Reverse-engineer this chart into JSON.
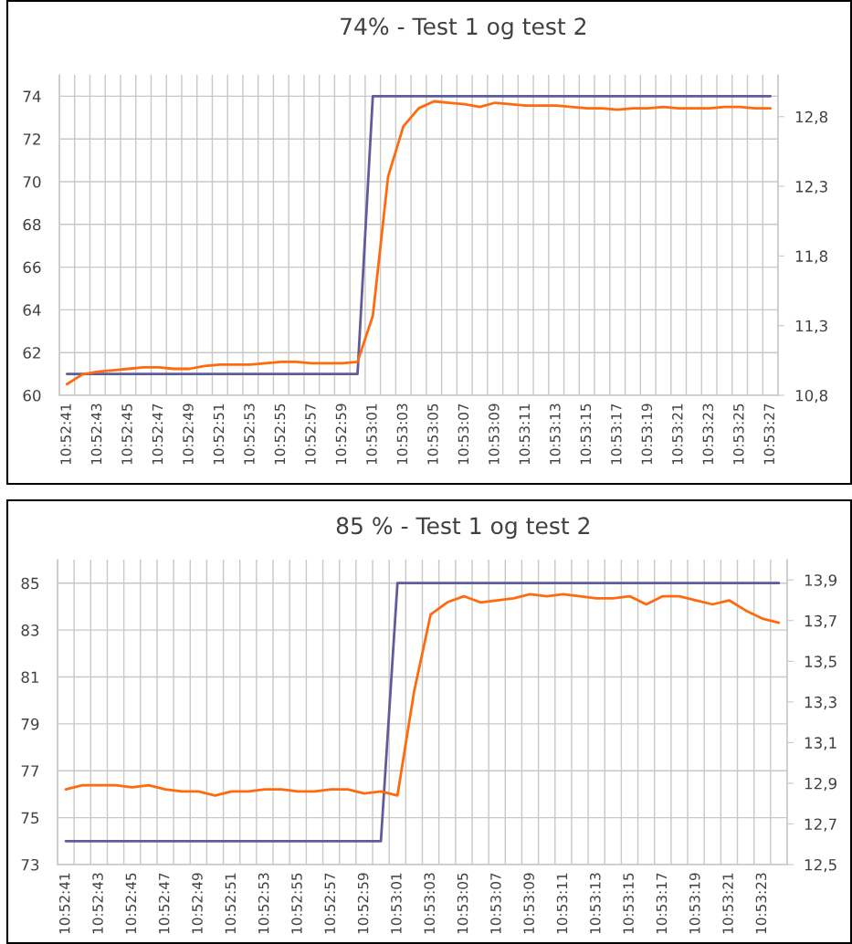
{
  "chart_data": [
    {
      "type": "line",
      "title": "74% - Test 1 og test 2",
      "categories": [
        "10:52:41",
        null,
        "10:52:43",
        null,
        "10:52:45",
        null,
        "10:52:47",
        null,
        "10:52:49",
        null,
        "10:52:51",
        null,
        "10:52:53",
        null,
        "10:52:55",
        null,
        "10:52:57",
        null,
        "10:52:59",
        null,
        "10:53:01",
        null,
        "10:53:03",
        null,
        "10:53:05",
        null,
        "10:53:07",
        null,
        "10:53:09",
        null,
        "10:53:11",
        null,
        "10:53:13",
        null,
        "10:53:15",
        null,
        "10:53:17",
        null,
        "10:53:19",
        null,
        "10:53:21",
        null,
        "10:53:23",
        null,
        "10:53:25",
        null,
        "10:53:27"
      ],
      "series": [
        {
          "color": "#5f5c9e",
          "values": [
            61,
            61,
            61,
            61,
            61,
            61,
            61,
            61,
            61,
            61,
            61,
            61,
            61,
            61,
            61,
            61,
            61,
            61,
            61,
            61,
            74,
            74,
            74,
            74,
            74,
            74,
            74,
            74,
            74,
            74,
            74,
            74,
            74,
            74,
            74,
            74,
            74,
            74,
            74,
            74,
            74,
            74,
            74,
            74,
            74,
            74,
            74
          ]
        },
        {
          "color": "#ff6a0f",
          "axis": "y2",
          "values": [
            10.88,
            10.95,
            10.97,
            10.98,
            10.99,
            11.0,
            11.0,
            10.99,
            10.99,
            11.01,
            11.02,
            11.02,
            11.02,
            11.03,
            11.04,
            11.04,
            11.03,
            11.03,
            11.03,
            11.04,
            11.37,
            12.37,
            12.73,
            12.86,
            12.91,
            12.9,
            12.89,
            12.87,
            12.9,
            12.89,
            12.88,
            12.88,
            12.88,
            12.87,
            12.86,
            12.86,
            12.85,
            12.86,
            12.86,
            12.87,
            12.86,
            12.86,
            12.86,
            12.87,
            12.87,
            12.86,
            12.86
          ]
        }
      ],
      "ylim": [
        60,
        75
      ],
      "yticks": [
        60,
        62,
        64,
        66,
        68,
        70,
        72,
        74
      ],
      "y2lim": [
        10.8,
        13.1
      ],
      "y2ticks": [
        {
          "value": 10.8,
          "label": "10,8"
        },
        {
          "value": 11.3,
          "label": "11,3"
        },
        {
          "value": 11.8,
          "label": "11,8"
        },
        {
          "value": 12.3,
          "label": "12,3"
        },
        {
          "value": 12.8,
          "label": "12,8"
        }
      ],
      "grid": true
    },
    {
      "type": "line",
      "title": "85 % - Test 1 og test 2",
      "categories": [
        "10:52:41",
        null,
        "10:52:43",
        null,
        "10:52:45",
        null,
        "10:52:47",
        null,
        "10:52:49",
        null,
        "10:52:51",
        null,
        "10:52:53",
        null,
        "10:52:55",
        null,
        "10:52:57",
        null,
        "10:52:59",
        null,
        "10:53:01",
        null,
        "10:53:03",
        null,
        "10:53:05",
        null,
        "10:53:07",
        null,
        "10:53:09",
        null,
        "10:53:11",
        null,
        "10:53:13",
        null,
        "10:53:15",
        null,
        "10:53:17",
        null,
        "10:53:19",
        null,
        "10:53:21",
        null,
        "10:53:23",
        null
      ],
      "series": [
        {
          "color": "#5f5c9e",
          "values": [
            74,
            74,
            74,
            74,
            74,
            74,
            74,
            74,
            74,
            74,
            74,
            74,
            74,
            74,
            74,
            74,
            74,
            74,
            74,
            74,
            85,
            85,
            85,
            85,
            85,
            85,
            85,
            85,
            85,
            85,
            85,
            85,
            85,
            85,
            85,
            85,
            85,
            85,
            85,
            85,
            85,
            85,
            85,
            85
          ]
        },
        {
          "color": "#ff6a0f",
          "axis": "y2",
          "values": [
            12.87,
            12.89,
            12.89,
            12.89,
            12.88,
            12.89,
            12.87,
            12.86,
            12.86,
            12.84,
            12.86,
            12.86,
            12.87,
            12.87,
            12.86,
            12.86,
            12.87,
            12.87,
            12.85,
            12.86,
            12.84,
            13.35,
            13.73,
            13.79,
            13.82,
            13.79,
            13.8,
            13.81,
            13.83,
            13.82,
            13.83,
            13.82,
            13.81,
            13.81,
            13.82,
            13.78,
            13.82,
            13.82,
            13.8,
            13.78,
            13.8,
            13.75,
            13.71,
            13.69
          ]
        }
      ],
      "ylim": [
        73,
        86
      ],
      "yticks": [
        73,
        75,
        77,
        79,
        81,
        83,
        85
      ],
      "y2lim": [
        12.5,
        14.0
      ],
      "y2ticks": [
        {
          "value": 12.5,
          "label": "12,5"
        },
        {
          "value": 12.7,
          "label": "12,7"
        },
        {
          "value": 12.9,
          "label": "12,9"
        },
        {
          "value": 13.1,
          "label": "13,1"
        },
        {
          "value": 13.3,
          "label": "13,3"
        },
        {
          "value": 13.5,
          "label": "13,5"
        },
        {
          "value": 13.7,
          "label": "13,7"
        },
        {
          "value": 13.9,
          "label": "13,9"
        }
      ],
      "grid": true
    }
  ]
}
